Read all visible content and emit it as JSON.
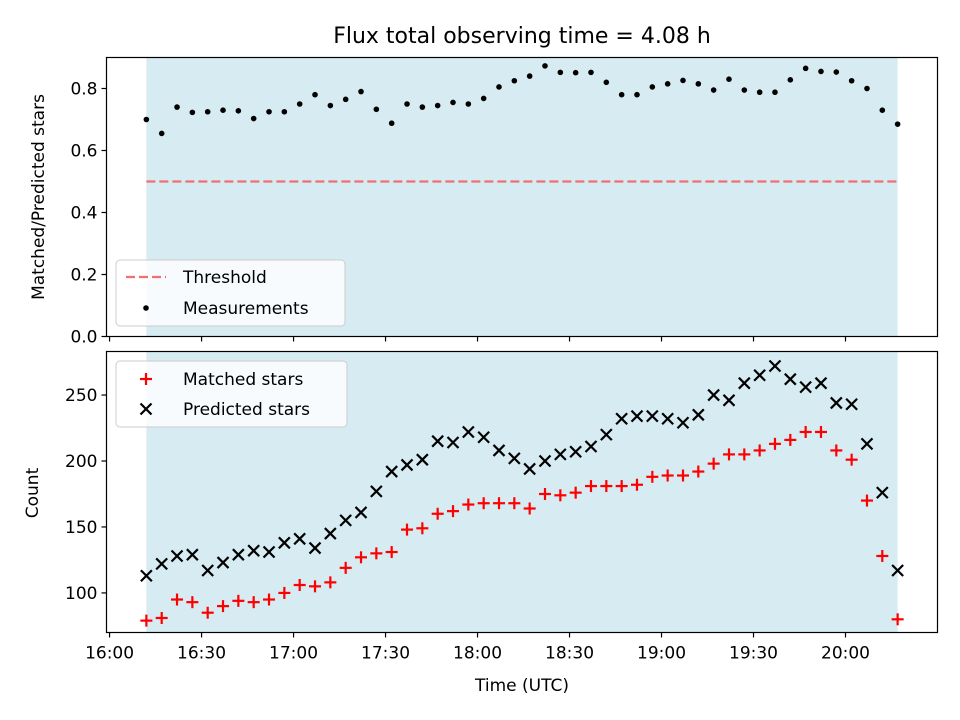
{
  "title": "Flux total observing time = 4.08 h",
  "chart_data": [
    {
      "type": "scatter",
      "panel": "top",
      "ylabel": "Matched/Predicted stars",
      "ylim": [
        0,
        0.9
      ],
      "yticks": [
        0.0,
        0.2,
        0.4,
        0.6,
        0.8
      ],
      "ytick_labels": [
        "0.0",
        "0.2",
        "0.4",
        "0.6",
        "0.8"
      ],
      "threshold": {
        "name": "Threshold",
        "value": 0.5,
        "color": "#f07070"
      },
      "legend": [
        "Threshold",
        "Measurements"
      ],
      "legend_position": "lower-left",
      "series": [
        {
          "name": "Measurements",
          "color": "#000000",
          "marker": "dot",
          "x": [
            "16:12",
            "16:17",
            "16:22",
            "16:27",
            "16:32",
            "16:37",
            "16:42",
            "16:47",
            "16:52",
            "16:57",
            "17:02",
            "17:07",
            "17:12",
            "17:17",
            "17:22",
            "17:27",
            "17:32",
            "17:37",
            "17:42",
            "17:47",
            "17:52",
            "17:57",
            "18:02",
            "18:07",
            "18:12",
            "18:17",
            "18:22",
            "18:27",
            "18:32",
            "18:37",
            "18:42",
            "18:47",
            "18:52",
            "18:57",
            "19:02",
            "19:07",
            "19:12",
            "19:17",
            "19:22",
            "19:27",
            "19:32",
            "19:37",
            "19:42",
            "19:47",
            "19:52",
            "19:57",
            "20:02",
            "20:07",
            "20:12",
            "20:17"
          ],
          "values": [
            0.7,
            0.655,
            0.74,
            0.723,
            0.725,
            0.73,
            0.728,
            0.703,
            0.725,
            0.725,
            0.75,
            0.78,
            0.745,
            0.765,
            0.79,
            0.733,
            0.688,
            0.75,
            0.74,
            0.745,
            0.755,
            0.75,
            0.768,
            0.805,
            0.825,
            0.84,
            0.873,
            0.852,
            0.851,
            0.852,
            0.82,
            0.78,
            0.78,
            0.805,
            0.815,
            0.826,
            0.815,
            0.795,
            0.83,
            0.795,
            0.788,
            0.788,
            0.828,
            0.865,
            0.855,
            0.853,
            0.825,
            0.8,
            0.73,
            0.685
          ]
        }
      ]
    },
    {
      "type": "scatter",
      "panel": "bottom",
      "xlabel": "Time (UTC)",
      "ylabel": "Count",
      "ylim": [
        70,
        283
      ],
      "yticks": [
        100,
        150,
        200,
        250
      ],
      "ytick_labels": [
        "100",
        "150",
        "200",
        "250"
      ],
      "xlim": [
        "15:59",
        "20:30"
      ],
      "xticks": [
        "16:00",
        "16:30",
        "17:00",
        "17:30",
        "18:00",
        "18:30",
        "19:00",
        "19:30",
        "20:00"
      ],
      "xtick_labels": [
        "16:00",
        "16:30",
        "17:00",
        "17:30",
        "18:00",
        "18:30",
        "19:00",
        "19:30",
        "20:00"
      ],
      "observing_window": [
        "16:12",
        "20:17"
      ],
      "legend": [
        "Matched stars",
        "Predicted stars"
      ],
      "legend_position": "upper-left",
      "series": [
        {
          "name": "Matched stars",
          "color": "#ff0000",
          "marker": "plus",
          "x": [
            "16:12",
            "16:17",
            "16:22",
            "16:27",
            "16:32",
            "16:37",
            "16:42",
            "16:47",
            "16:52",
            "16:57",
            "17:02",
            "17:07",
            "17:12",
            "17:17",
            "17:22",
            "17:27",
            "17:32",
            "17:37",
            "17:42",
            "17:47",
            "17:52",
            "17:57",
            "18:02",
            "18:07",
            "18:12",
            "18:17",
            "18:22",
            "18:27",
            "18:32",
            "18:37",
            "18:42",
            "18:47",
            "18:52",
            "18:57",
            "19:02",
            "19:07",
            "19:12",
            "19:17",
            "19:22",
            "19:27",
            "19:32",
            "19:37",
            "19:42",
            "19:47",
            "19:52",
            "19:57",
            "20:02",
            "20:07",
            "20:12",
            "20:17"
          ],
          "values": [
            79,
            81,
            95,
            93,
            85,
            90,
            94,
            93,
            95,
            100,
            106,
            105,
            108,
            119,
            127,
            130,
            131,
            148,
            149,
            160,
            162,
            167,
            168,
            168,
            168,
            164,
            175,
            174,
            176,
            181,
            181,
            181,
            182,
            188,
            189,
            189,
            192,
            198,
            205,
            205,
            208,
            213,
            216,
            222,
            222,
            208,
            201,
            170,
            128,
            80
          ]
        },
        {
          "name": "Predicted stars",
          "color": "#000000",
          "marker": "x",
          "x": [
            "16:12",
            "16:17",
            "16:22",
            "16:27",
            "16:32",
            "16:37",
            "16:42",
            "16:47",
            "16:52",
            "16:57",
            "17:02",
            "17:07",
            "17:12",
            "17:17",
            "17:22",
            "17:27",
            "17:32",
            "17:37",
            "17:42",
            "17:47",
            "17:52",
            "17:57",
            "18:02",
            "18:07",
            "18:12",
            "18:17",
            "18:22",
            "18:27",
            "18:32",
            "18:37",
            "18:42",
            "18:47",
            "18:52",
            "18:57",
            "19:02",
            "19:07",
            "19:12",
            "19:17",
            "19:22",
            "19:27",
            "19:32",
            "19:37",
            "19:42",
            "19:47",
            "19:52",
            "19:57",
            "20:02",
            "20:07",
            "20:12",
            "20:17"
          ],
          "values": [
            113,
            122,
            128,
            129,
            117,
            123,
            129,
            132,
            131,
            138,
            141,
            134,
            145,
            155,
            161,
            177,
            192,
            197,
            201,
            215,
            214,
            222,
            218,
            208,
            202,
            194,
            200,
            205,
            207,
            211,
            220,
            232,
            234,
            234,
            232,
            229,
            235,
            250,
            246,
            259,
            265,
            272,
            262,
            256,
            259,
            244,
            243,
            213,
            176,
            117
          ]
        }
      ]
    }
  ]
}
